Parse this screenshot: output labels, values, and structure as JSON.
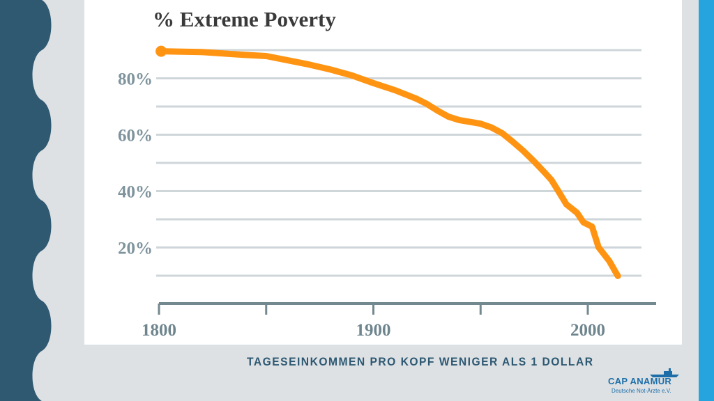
{
  "slide": {
    "caption": "TAGESEINKOMMEN PRO KOPF WENIGER ALS 1 DOLLAR",
    "logo_name": "CAP ANAMUR",
    "logo_subtitle": "Deutsche Not-Ärzte e.V.",
    "colors": {
      "left_wave": "#2f5871",
      "right_accent": "#25a4dd",
      "background": "#dde1e4",
      "caption": "#2d5872",
      "logo": "#1d6ea8"
    }
  },
  "chart_data": {
    "type": "line",
    "title": "% Extreme Poverty",
    "xlabel": "",
    "ylabel": "",
    "xlim": [
      1800,
      2030
    ],
    "ylim": [
      0,
      100
    ],
    "x_ticks": [
      1800,
      1850,
      1900,
      1950,
      2000
    ],
    "x_tick_labels": [
      "1800",
      "",
      "1900",
      "",
      "2000"
    ],
    "y_gridlines": [
      10,
      20,
      30,
      40,
      50,
      60,
      70,
      80,
      90
    ],
    "y_tick_values": [
      20,
      40,
      60,
      80
    ],
    "y_tick_labels": [
      "20%",
      "40%",
      "60%",
      "80%"
    ],
    "grid": true,
    "legend": "none",
    "line_color": "#ff9413",
    "series": [
      {
        "x": [
          1801,
          1820,
          1840,
          1850,
          1860,
          1870,
          1880,
          1890,
          1900,
          1910,
          1920,
          1925,
          1930,
          1935,
          1940,
          1950,
          1955,
          1960,
          1965,
          1970,
          1975,
          1980,
          1983,
          1986,
          1990,
          1995,
          1998,
          2002,
          2005,
          2010,
          2014
        ],
        "y": [
          89.6,
          89.3,
          88.3,
          87.9,
          86.4,
          84.9,
          83.1,
          81,
          78.3,
          75.8,
          72.8,
          70.9,
          68.5,
          66.4,
          65.2,
          63.9,
          62.6,
          60.6,
          57.5,
          54.2,
          50.5,
          46.5,
          44,
          40.3,
          35.3,
          32.3,
          28.9,
          27.4,
          20.1,
          15.2,
          9.9
        ]
      }
    ]
  }
}
